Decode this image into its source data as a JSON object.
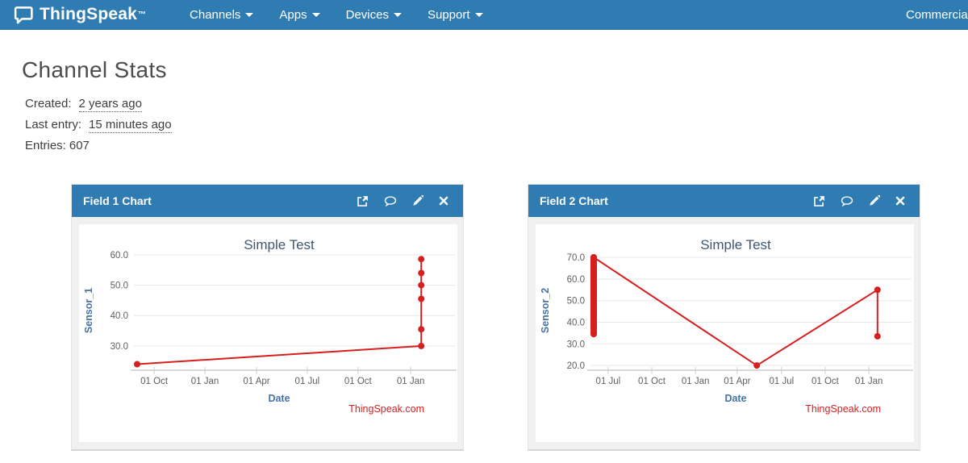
{
  "colors": {
    "navbar_bg": "#2f7cb2",
    "panel_header_bg": "#2f7cb2",
    "line_red": "#d62020",
    "chart_title_blue": "#3e576f",
    "axis_label_blue": "#4572a7"
  },
  "navbar": {
    "brand": "ThingSpeak",
    "brand_tm": "™",
    "items": [
      {
        "label": "Channels"
      },
      {
        "label": "Apps"
      },
      {
        "label": "Devices"
      },
      {
        "label": "Support"
      }
    ],
    "right_item": "Commercial Use"
  },
  "page": {
    "title": "Channel Stats",
    "meta": [
      {
        "label": "Created:",
        "value": "2 years ago"
      },
      {
        "label": "Last entry:",
        "value": "15 minutes ago"
      },
      {
        "label": "Entries:",
        "value": "607"
      }
    ]
  },
  "panels": [
    {
      "header": "Field 1 Chart",
      "icons": [
        "popout-icon",
        "comment-icon",
        "pencil-icon",
        "close-icon"
      ],
      "chart_data": {
        "type": "line",
        "title": "Simple Test",
        "xlabel": "Date",
        "ylabel": "Sensor_1",
        "watermark": "ThingSpeak.com",
        "line_color": "#d62020",
        "grid": true,
        "ylim": [
          22,
          61.3
        ],
        "yticks": [
          60,
          50,
          40,
          30
        ],
        "ytick_labels": [
          "60.0",
          "50.0",
          "40.0",
          "30.0"
        ],
        "xticks": [
          {
            "label": "01 Oct",
            "f": 0.063
          },
          {
            "label": "01 Jan",
            "f": 0.221
          },
          {
            "label": "01 Apr",
            "f": 0.382
          },
          {
            "label": "01 Jul",
            "f": 0.54
          },
          {
            "label": "01 Oct",
            "f": 0.698
          },
          {
            "label": "01 Jan",
            "f": 0.862
          }
        ],
        "points": [
          {
            "x": "~mid Sep (start of range)",
            "value": 24,
            "f": 0.01
          },
          {
            "x": "~early Jan (end of range)",
            "value": 30,
            "f": 0.895
          },
          {
            "x": "~early Jan (end of range)",
            "value": 35.5,
            "f": 0.895
          },
          {
            "x": "~early Jan (end of range)",
            "value": 45.5,
            "f": 0.895
          },
          {
            "x": "~early Jan (end of range)",
            "value": 50,
            "f": 0.895
          },
          {
            "x": "~early Jan (end of range)",
            "value": 54,
            "f": 0.895
          },
          {
            "x": "~early Jan (end of range)",
            "value": 58.6,
            "f": 0.895
          }
        ]
      }
    },
    {
      "header": "Field 2 Chart",
      "icons": [
        "popout-icon",
        "comment-icon",
        "pencil-icon",
        "close-icon"
      ],
      "chart_data": {
        "type": "line",
        "title": "Simple Test",
        "xlabel": "Date",
        "ylabel": "Sensor_2",
        "watermark": "ThingSpeak.com",
        "line_color": "#d62020",
        "grid": true,
        "ylim": [
          17.8,
          73
        ],
        "yticks": [
          70,
          60,
          50,
          40,
          30,
          20
        ],
        "ytick_labels": [
          "70.0",
          "60.0",
          "50.0",
          "40.0",
          "30.0",
          "20.0"
        ],
        "xticks": [
          {
            "label": "01 Jul",
            "f": 0.055
          },
          {
            "label": "01 Oct",
            "f": 0.191
          },
          {
            "label": "01 Jan",
            "f": 0.327
          },
          {
            "label": "01 Apr",
            "f": 0.457
          },
          {
            "label": "01 Jul",
            "f": 0.595
          },
          {
            "label": "01 Oct",
            "f": 0.731
          },
          {
            "label": "01 Jan",
            "f": 0.867
          }
        ],
        "cluster": {
          "x": "~mid Jun (start of range)",
          "f": 0.01,
          "from": 34.5,
          "to": 70,
          "note": "dense stack of overlapping points between 34.5 and 70"
        },
        "points": [
          {
            "x": "~mid Jun (start of range)",
            "value": 70,
            "f": 0.01
          },
          {
            "x": "~mid May (next year)",
            "value": 20,
            "f": 0.518
          },
          {
            "x": "~early Jan (end of range)",
            "value": 55,
            "f": 0.894
          },
          {
            "x": "~early Jan (end of range)",
            "value": 33.5,
            "f": 0.894
          }
        ]
      }
    }
  ]
}
